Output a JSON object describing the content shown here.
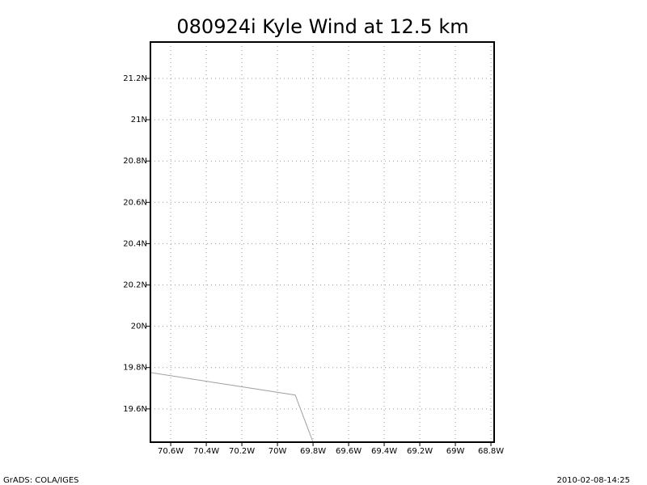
{
  "chart_data": {
    "type": "line",
    "title": "080924i Kyle Wind at 12.5 km",
    "x": [
      -70.714,
      -69.9,
      -69.8
    ],
    "series": [
      {
        "name": "Kyle",
        "color": "#a0a0a0",
        "values": [
          19.776,
          19.667,
          19.439
        ]
      }
    ],
    "xlim": [
      -70.714,
      -68.782
    ],
    "ylim": [
      19.439,
      21.376
    ],
    "xticks": [
      {
        "value": -70.6,
        "label": "70.6W"
      },
      {
        "value": -70.4,
        "label": "70.4W"
      },
      {
        "value": -70.2,
        "label": "70.2W"
      },
      {
        "value": -70,
        "label": "70W"
      },
      {
        "value": -69.8,
        "label": "69.8W"
      },
      {
        "value": -69.6,
        "label": "69.6W"
      },
      {
        "value": -69.4,
        "label": "69.4W"
      },
      {
        "value": -69.2,
        "label": "69.2W"
      },
      {
        "value": -69,
        "label": "69W"
      },
      {
        "value": -68.8,
        "label": "68.8W"
      }
    ],
    "yticks": [
      {
        "value": 19.6,
        "label": "19.6N"
      },
      {
        "value": 19.8,
        "label": "19.8N"
      },
      {
        "value": 20,
        "label": "20N"
      },
      {
        "value": 20.2,
        "label": "20.2N"
      },
      {
        "value": 20.4,
        "label": "20.4N"
      },
      {
        "value": 20.6,
        "label": "20.6N"
      },
      {
        "value": 20.8,
        "label": "20.8N"
      },
      {
        "value": 21,
        "label": "21N"
      },
      {
        "value": 21.2,
        "label": "21.2N"
      }
    ],
    "grid": true,
    "footer_left": "GrADS: COLA/IGES",
    "footer_right": "2010-02-08-14:25"
  }
}
